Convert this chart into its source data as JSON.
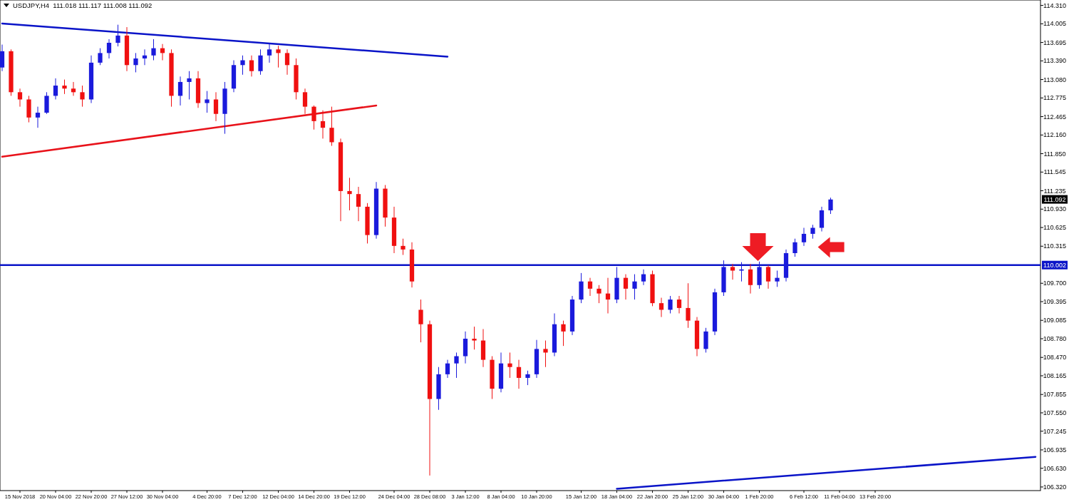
{
  "chart_data": {
    "type": "candlestick",
    "title": "USDJPY,H4  111.018 111.117 111.008 111.092",
    "categories": [
      null,
      null,
      "15 Nov 2018",
      null,
      null,
      null,
      "20 Nov 04:00",
      null,
      null,
      null,
      "22 Nov 20:00",
      null,
      null,
      null,
      "27 Nov 12:00",
      null,
      null,
      null,
      "30 Nov 04:00",
      null,
      null,
      null,
      null,
      "4 Dec 20:00",
      null,
      null,
      null,
      "7 Dec 12:00",
      null,
      null,
      null,
      "12 Dec 04:00",
      null,
      null,
      null,
      "14 Dec 20:00",
      null,
      null,
      null,
      "19 Dec 12:00",
      null,
      null,
      null,
      null,
      "24 Dec 04:00",
      null,
      null,
      null,
      "28 Dec 08:00",
      null,
      null,
      null,
      "3 Jan 12:00",
      null,
      null,
      null,
      "8 Jan 04:00",
      null,
      null,
      null,
      "10 Jan 20:00",
      null,
      null,
      null,
      null,
      "15 Jan 12:00",
      null,
      null,
      null,
      "18 Jan 04:00",
      null,
      null,
      null,
      "22 Jan 20:00",
      null,
      null,
      null,
      "25 Jan 12:00",
      null,
      null,
      null,
      "30 Jan 04:00",
      null,
      null,
      null,
      "1 Feb 20:00",
      null,
      null,
      null,
      null,
      "6 Feb 12:00",
      null,
      null,
      null,
      "11 Feb 04:00",
      null,
      null,
      null,
      "13 Feb 20:00",
      null,
      null,
      null,
      null,
      null,
      null,
      null,
      null,
      null,
      null,
      null,
      null,
      null,
      null,
      null,
      null,
      null,
      null
    ],
    "ohlc": [
      [
        113.28,
        113.66,
        113.22,
        113.55
      ],
      [
        113.55,
        113.58,
        112.81,
        112.87
      ],
      [
        112.87,
        112.93,
        112.63,
        112.75
      ],
      [
        112.75,
        112.81,
        112.37,
        112.45
      ],
      [
        112.45,
        112.63,
        112.28,
        112.53
      ],
      [
        112.53,
        112.87,
        112.51,
        112.81
      ],
      [
        112.81,
        113.1,
        112.75,
        112.98
      ],
      [
        112.98,
        113.08,
        112.84,
        112.93
      ],
      [
        112.93,
        113.04,
        112.81,
        112.87
      ],
      [
        112.87,
        112.98,
        112.63,
        112.75
      ],
      [
        112.75,
        113.48,
        112.69,
        113.36
      ],
      [
        113.36,
        113.6,
        113.32,
        113.52
      ],
      [
        113.52,
        113.75,
        113.43,
        113.69
      ],
      [
        113.69,
        113.99,
        113.63,
        113.81
      ],
      [
        113.81,
        113.95,
        113.22,
        113.32
      ],
      [
        113.32,
        113.52,
        113.2,
        113.43
      ],
      [
        113.43,
        113.58,
        113.32,
        113.48
      ],
      [
        113.48,
        113.75,
        113.4,
        113.6
      ],
      [
        113.6,
        113.67,
        113.4,
        113.52
      ],
      [
        113.52,
        113.58,
        112.63,
        112.81
      ],
      [
        112.81,
        113.13,
        112.65,
        113.04
      ],
      [
        113.04,
        113.22,
        112.75,
        113.1
      ],
      [
        113.1,
        113.22,
        112.61,
        112.69
      ],
      [
        112.69,
        112.89,
        112.53,
        112.75
      ],
      [
        112.75,
        112.87,
        112.39,
        112.51
      ],
      [
        112.51,
        113.04,
        112.18,
        112.93
      ],
      [
        112.93,
        113.4,
        112.87,
        113.32
      ],
      [
        113.32,
        113.48,
        113.16,
        113.4
      ],
      [
        113.4,
        113.48,
        113.13,
        113.22
      ],
      [
        113.22,
        113.58,
        113.16,
        113.48
      ],
      [
        113.48,
        113.67,
        113.36,
        113.58
      ],
      [
        113.58,
        113.64,
        113.28,
        113.52
      ],
      [
        113.52,
        113.58,
        113.16,
        113.32
      ],
      [
        113.32,
        113.43,
        112.75,
        112.87
      ],
      [
        112.87,
        112.93,
        112.51,
        112.63
      ],
      [
        112.63,
        112.65,
        112.25,
        112.39
      ],
      [
        112.39,
        112.57,
        112.1,
        112.28
      ],
      [
        112.28,
        112.63,
        111.98,
        112.04
      ],
      [
        112.04,
        112.1,
        110.73,
        111.23
      ],
      [
        111.23,
        111.45,
        110.91,
        111.18
      ],
      [
        111.18,
        111.3,
        110.73,
        110.97
      ],
      [
        110.97,
        111.03,
        110.36,
        110.5
      ],
      [
        110.5,
        111.38,
        110.44,
        111.27
      ],
      [
        111.27,
        111.33,
        110.64,
        110.79
      ],
      [
        110.79,
        110.97,
        110.2,
        110.32
      ],
      [
        110.32,
        110.44,
        110.17,
        110.26
      ],
      [
        110.26,
        110.38,
        109.63,
        109.73
      ],
      [
        109.26,
        109.43,
        108.72,
        109.02
      ],
      [
        109.02,
        109.08,
        106.51,
        107.78
      ],
      [
        107.78,
        108.31,
        107.6,
        108.19
      ],
      [
        108.19,
        108.43,
        108.13,
        108.37
      ],
      [
        108.37,
        108.55,
        108.13,
        108.49
      ],
      [
        108.49,
        108.9,
        108.37,
        108.78
      ],
      [
        108.78,
        108.98,
        108.6,
        108.75
      ],
      [
        108.75,
        108.94,
        108.31,
        108.43
      ],
      [
        108.43,
        108.49,
        107.78,
        107.95
      ],
      [
        107.95,
        108.55,
        107.89,
        108.37
      ],
      [
        108.37,
        108.55,
        108.13,
        108.31
      ],
      [
        108.31,
        108.43,
        107.95,
        108.13
      ],
      [
        108.13,
        108.25,
        108.01,
        108.19
      ],
      [
        108.19,
        108.76,
        108.13,
        108.61
      ],
      [
        108.61,
        108.75,
        108.31,
        108.55
      ],
      [
        108.55,
        109.2,
        108.49,
        109.02
      ],
      [
        109.02,
        109.08,
        108.66,
        108.9
      ],
      [
        108.9,
        109.49,
        108.84,
        109.43
      ],
      [
        109.43,
        109.87,
        109.37,
        109.73
      ],
      [
        109.73,
        109.79,
        109.49,
        109.61
      ],
      [
        109.61,
        109.67,
        109.37,
        109.53
      ],
      [
        109.53,
        109.79,
        109.2,
        109.43
      ],
      [
        109.43,
        109.97,
        109.37,
        109.79
      ],
      [
        109.79,
        109.85,
        109.43,
        109.61
      ],
      [
        109.61,
        109.85,
        109.43,
        109.73
      ],
      [
        109.73,
        109.93,
        109.67,
        109.85
      ],
      [
        109.85,
        109.91,
        109.32,
        109.37
      ],
      [
        109.37,
        109.46,
        109.14,
        109.26
      ],
      [
        109.26,
        109.49,
        109.2,
        109.43
      ],
      [
        109.43,
        109.49,
        109.2,
        109.29
      ],
      [
        109.29,
        109.7,
        108.96,
        109.08
      ],
      [
        109.08,
        109.14,
        108.49,
        108.61
      ],
      [
        108.61,
        108.96,
        108.55,
        108.9
      ],
      [
        108.9,
        109.61,
        108.84,
        109.55
      ],
      [
        109.55,
        110.08,
        109.49,
        109.97
      ],
      [
        109.97,
        110.02,
        109.76,
        109.91
      ],
      [
        109.91,
        110.05,
        109.73,
        109.93
      ],
      [
        109.93,
        110.02,
        109.53,
        109.67
      ],
      [
        109.67,
        110.06,
        109.61,
        109.97
      ],
      [
        109.97,
        110.0,
        109.61,
        109.73
      ],
      [
        109.73,
        109.91,
        109.64,
        109.79
      ],
      [
        109.79,
        110.26,
        109.73,
        110.2
      ],
      [
        110.2,
        110.44,
        110.14,
        110.38
      ],
      [
        110.38,
        110.62,
        110.32,
        110.52
      ],
      [
        110.52,
        110.67,
        110.44,
        110.62
      ],
      [
        110.62,
        110.97,
        110.56,
        110.91
      ],
      [
        110.91,
        111.12,
        110.85,
        111.09
      ],
      null,
      null,
      null,
      null,
      null,
      null,
      null,
      null,
      null,
      null,
      null,
      null,
      null,
      null,
      null,
      null,
      null,
      null,
      null,
      null,
      null,
      null,
      null
    ],
    "colors": [
      "#1a1adc",
      "#f01010",
      "#f01010",
      "#f01010",
      "#1a1adc",
      "#1a1adc",
      "#1a1adc",
      "#f01010",
      "#f01010",
      "#f01010",
      "#1a1adc",
      "#1a1adc",
      "#1a1adc",
      "#1a1adc",
      "#f01010",
      "#1a1adc",
      "#1a1adc",
      "#1a1adc",
      "#f01010",
      "#f01010",
      "#1a1adc",
      "#1a1adc",
      "#f01010",
      "#1a1adc",
      "#f01010",
      "#1a1adc",
      "#1a1adc",
      "#1a1adc",
      "#f01010",
      "#1a1adc",
      "#1a1adc",
      "#f01010",
      "#f01010",
      "#f01010",
      "#f01010",
      "#f01010",
      "#f01010",
      "#f01010",
      "#f01010",
      "#f01010",
      "#f01010",
      "#f01010",
      "#1a1adc",
      "#f01010",
      "#f01010",
      "#f01010",
      "#f01010",
      "#f01010",
      "#f01010",
      "#1a1adc",
      "#1a1adc",
      "#1a1adc",
      "#1a1adc",
      "#f01010",
      "#f01010",
      "#f01010",
      "#1a1adc",
      "#f01010",
      "#f01010",
      "#1a1adc",
      "#1a1adc",
      "#f01010",
      "#1a1adc",
      "#f01010",
      "#1a1adc",
      "#1a1adc",
      "#f01010",
      "#f01010",
      "#f01010",
      "#1a1adc",
      "#f01010",
      "#1a1adc",
      "#1a1adc",
      "#f01010",
      "#f01010",
      "#1a1adc",
      "#f01010",
      "#f01010",
      "#f01010",
      "#1a1adc",
      "#1a1adc",
      "#1a1adc",
      "#f01010",
      "#1a1adc",
      "#f01010",
      "#1a1adc",
      "#f01010",
      "#1a1adc",
      "#1a1adc",
      "#1a1adc",
      "#1a1adc",
      "#1a1adc",
      "#1a1adc",
      "#1a1adc",
      null,
      null,
      null,
      null,
      null,
      null,
      null,
      null,
      null,
      null,
      null,
      null,
      null,
      null,
      null,
      null,
      null,
      null,
      null,
      null,
      null,
      null,
      null
    ],
    "series": [
      {
        "type": "line",
        "color": "#0a14c8",
        "values": [
          114.01,
          null,
          null,
          null,
          null,
          null,
          null,
          null,
          null,
          null,
          null,
          null,
          null,
          null,
          null,
          null,
          null,
          null,
          null,
          null,
          null,
          null,
          null,
          null,
          null,
          null,
          null,
          null,
          null,
          null,
          null,
          null,
          null,
          null,
          null,
          null,
          null,
          null,
          null,
          null,
          null,
          null,
          null,
          null,
          null,
          null,
          null,
          null,
          null,
          null,
          113.46,
          null,
          null,
          null,
          null,
          null,
          null,
          null,
          null,
          null,
          null,
          null,
          null,
          null,
          null,
          null,
          null,
          null,
          null,
          null,
          null,
          null,
          null,
          null,
          null,
          null,
          null,
          null,
          null,
          null,
          null,
          null,
          null,
          null,
          null,
          null,
          null,
          null,
          null,
          null,
          null,
          null,
          null,
          null,
          null,
          null,
          null,
          null,
          null,
          null,
          null,
          null,
          null,
          null,
          null,
          null,
          null,
          null,
          null,
          null,
          null,
          null,
          null,
          null,
          null,
          null,
          null
        ]
      },
      {
        "type": "line",
        "color": "#e8121a",
        "values": [
          111.8,
          null,
          null,
          null,
          null,
          null,
          null,
          null,
          null,
          null,
          null,
          null,
          null,
          null,
          null,
          null,
          null,
          null,
          null,
          null,
          null,
          null,
          null,
          null,
          null,
          null,
          null,
          null,
          null,
          null,
          null,
          null,
          null,
          null,
          null,
          null,
          null,
          null,
          null,
          null,
          null,
          null,
          112.65,
          null,
          null,
          null,
          null,
          null,
          null,
          null,
          null,
          null,
          null,
          null,
          null,
          null,
          null,
          null,
          null,
          null,
          null,
          null,
          null,
          null,
          null,
          null,
          null,
          null,
          null,
          null,
          null,
          null,
          null,
          null,
          null,
          null,
          null,
          null,
          null,
          null,
          null,
          null,
          null,
          null,
          null,
          null,
          null,
          null,
          null,
          null,
          null,
          null,
          null,
          null,
          null,
          null,
          null,
          null,
          null,
          null,
          null,
          null,
          null,
          null,
          null,
          null,
          null,
          null,
          null,
          null,
          null,
          null,
          null,
          null,
          null,
          null,
          null
        ]
      },
      {
        "type": "line",
        "color": "#0a14c8",
        "values": [
          null,
          null,
          null,
          null,
          null,
          null,
          null,
          null,
          null,
          null,
          null,
          null,
          null,
          null,
          null,
          null,
          null,
          null,
          null,
          null,
          null,
          null,
          null,
          null,
          null,
          null,
          null,
          null,
          null,
          null,
          null,
          null,
          null,
          null,
          null,
          null,
          null,
          null,
          null,
          null,
          null,
          null,
          null,
          null,
          null,
          null,
          null,
          null,
          null,
          null,
          null,
          null,
          null,
          null,
          null,
          null,
          null,
          null,
          null,
          null,
          null,
          null,
          null,
          null,
          null,
          null,
          null,
          null,
          null,
          106.29,
          null,
          null,
          null,
          null,
          null,
          null,
          null,
          null,
          null,
          null,
          null,
          null,
          null,
          null,
          null,
          null,
          null,
          null,
          null,
          null,
          null,
          null,
          null,
          null,
          null,
          null,
          null,
          null,
          null,
          null,
          null,
          null,
          null,
          null,
          null,
          null,
          null,
          null,
          null,
          null,
          null,
          null,
          null,
          null,
          null,
          null,
          106.82
        ]
      }
    ],
    "ylim": [
      106.26,
      114.4
    ],
    "yticks": [
      {
        "value": 114.31,
        "label": "114.310"
      },
      114.005,
      113.695,
      {
        "value": 113.39,
        "label": "113.390"
      },
      {
        "value": 113.08,
        "label": "113.080"
      },
      112.775,
      112.465,
      {
        "value": 112.16,
        "label": "112.160"
      },
      {
        "value": 111.85,
        "label": "111.850"
      },
      111.545,
      111.235,
      {
        "value": 110.93,
        "label": "110.930"
      },
      110.625,
      110.315,
      {
        "value": 109.7,
        "label": "109.700"
      },
      109.395,
      109.085,
      {
        "value": 108.78,
        "label": "108.780"
      },
      {
        "value": 108.47,
        "label": "108.470"
      },
      108.165,
      107.855,
      {
        "value": 107.55,
        "label": "107.550"
      },
      107.245,
      106.935,
      {
        "value": 106.63,
        "label": "106.630"
      },
      {
        "value": 106.32,
        "label": "106.320"
      }
    ],
    "ref_lines": [
      {
        "axis": "y",
        "value": 110.002,
        "label": "110.002",
        "color": "#0a14c8"
      }
    ],
    "annotations": [
      {
        "text": "111.092",
        "y": 111.092
      }
    ]
  }
}
